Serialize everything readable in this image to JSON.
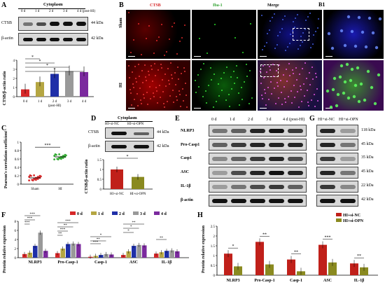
{
  "panels": {
    "A": "A",
    "B": "B",
    "B1": "B1",
    "C": "C",
    "D": "D",
    "E": "E",
    "F": "F",
    "G": "G",
    "H": "H"
  },
  "A": {
    "header": "Cytoplasm",
    "lanes": [
      "0 d",
      "1 d",
      "2 d",
      "3 d",
      "4 d (post-HI)"
    ],
    "rows": [
      {
        "name": "CTSB",
        "kda": "44 kDa"
      },
      {
        "name": "β-actin",
        "kda": "42 kDa"
      }
    ],
    "ylabel": "CTSB/β-actin ratio",
    "xticks": [
      "0 d",
      "1 d",
      "2 d\n(post-HI)",
      "3 d",
      "4 d"
    ],
    "sig": [
      "*",
      "*",
      "*",
      "*"
    ]
  },
  "B": {
    "cols": [
      "CTSB",
      "Iba-1",
      "Merge"
    ],
    "rows": [
      "Sham",
      "HI"
    ]
  },
  "C": {
    "ylabel": "Pearson's correlation coefficient",
    "xticks": [
      "Sham",
      "HI"
    ],
    "sig": "***"
  },
  "D": {
    "header": "Cytoplasm",
    "lanes": [
      "HI+si-NC",
      "HI+si-OPN"
    ],
    "rows": [
      {
        "name": "CTSB",
        "kda": "44 kDa"
      },
      {
        "name": "β-actin",
        "kda": "42 kDa"
      }
    ],
    "ylabel": "CTSB/β-actin ratio",
    "sig": "*"
  },
  "E": {
    "lanes": [
      "0 d",
      "1 d",
      "2 d",
      "3 d",
      "4 d (post-HI)"
    ],
    "rows": [
      "NLRP3",
      "Pro-Casp1",
      "Casp1",
      "ASC",
      "IL-1β",
      "β-actin"
    ]
  },
  "G": {
    "lanes": [
      "HI+si-NC",
      "HI+si-OPN"
    ],
    "kda": [
      "118 kDa",
      "45 kDa",
      "35 kDa",
      "45 kDa",
      "22 kDa",
      "42 kDa"
    ]
  },
  "F": {
    "ylabel": "Protein relative expression",
    "legend": [
      "0 d",
      "1 d",
      "2 d",
      "3 d",
      "4 d"
    ],
    "sig": [
      "***",
      "***",
      "***",
      "***",
      "**",
      "***",
      "**",
      "*",
      "**",
      "***",
      "**",
      "*",
      "*",
      "**"
    ]
  },
  "H": {
    "ylabel": "Protein relative expression",
    "legend": [
      "HI+si-NC",
      "HI+si-OPN"
    ],
    "sig": [
      "*",
      "**",
      "**",
      "***",
      "**"
    ]
  },
  "colors": {
    "d0": "#d62728",
    "d1": "#b5a642",
    "d2": "#1f2fa8",
    "d3": "#999999",
    "d4": "#7b2a9e",
    "nc": "#c0201a",
    "opn": "#8a8a20",
    "sham": "#d62728",
    "hi": "#33aa33"
  },
  "chart_data": [
    {
      "type": "bar",
      "panel": "A",
      "categories": [
        "0 d",
        "1 d",
        "2 d",
        "3 d",
        "4 d"
      ],
      "values": [
        0.8,
        1.6,
        2.5,
        2.8,
        2.7
      ],
      "ylim": [
        0,
        4
      ],
      "yticks": [
        0,
        1,
        2,
        3,
        4
      ],
      "xlabel": "",
      "ylabel": "CTSB/β-actin ratio"
    },
    {
      "type": "scatter",
      "panel": "C",
      "categories": [
        "Sham",
        "HI"
      ],
      "values": [
        0.15,
        0.65
      ],
      "ylim": [
        0,
        1
      ],
      "yticks": [
        0,
        0.2,
        0.4,
        0.6,
        0.8,
        1.0
      ],
      "ylabel": "Pearson's correlation coefficient"
    },
    {
      "type": "bar",
      "panel": "D",
      "categories": [
        "HI+si-NC",
        "HI+si-OPN"
      ],
      "values": [
        1.0,
        0.62
      ],
      "ylim": [
        0,
        1.5
      ],
      "yticks": [
        0,
        0.5,
        1.0,
        1.5
      ],
      "ylabel": "CTSB/β-actin ratio"
    },
    {
      "type": "bar",
      "panel": "F",
      "categories": [
        "NLRP3",
        "Pro-Casp-1",
        "Casp-1",
        "ASC",
        "IL-1β"
      ],
      "ylim": [
        0,
        8
      ],
      "yticks": [
        0,
        2,
        4,
        6,
        8
      ],
      "ylabel": "Protein relative expression",
      "series": [
        {
          "name": "0 d",
          "values": [
            0.8,
            1.0,
            0.2,
            0.6,
            0.9
          ]
        },
        {
          "name": "1 d",
          "values": [
            1.1,
            2.0,
            0.4,
            1.4,
            1.2
          ]
        },
        {
          "name": "2 d",
          "values": [
            2.6,
            3.0,
            0.6,
            2.6,
            1.5
          ]
        },
        {
          "name": "3 d",
          "values": [
            5.5,
            3.1,
            0.8,
            2.8,
            1.6
          ]
        },
        {
          "name": "4 d",
          "values": [
            1.5,
            3.0,
            0.7,
            2.7,
            1.4
          ]
        }
      ]
    },
    {
      "type": "bar",
      "panel": "H",
      "categories": [
        "NLRP3",
        "Pro-Casp-1",
        "Casp-1",
        "ASC",
        "IL-1β"
      ],
      "ylim": [
        0,
        2.5
      ],
      "yticks": [
        0,
        0.5,
        1.0,
        1.5,
        2.0,
        2.5
      ],
      "ylabel": "Protein relative expression",
      "series": [
        {
          "name": "HI+si-NC",
          "values": [
            1.1,
            1.7,
            0.8,
            1.55,
            0.6
          ]
        },
        {
          "name": "HI+si-OPN",
          "values": [
            0.45,
            0.55,
            0.2,
            0.65,
            0.4
          ]
        }
      ]
    }
  ]
}
